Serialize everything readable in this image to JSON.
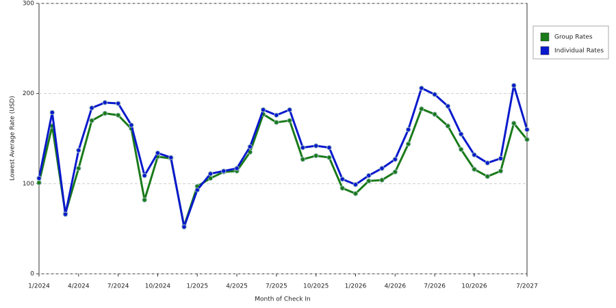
{
  "chart_data": {
    "type": "line",
    "x_label": "Month of Check In",
    "y_label": "Lowest Average Rate (USD)",
    "categories": [
      "1/2024",
      null,
      null,
      "4/2024",
      null,
      null,
      "7/2024",
      null,
      null,
      "10/2024",
      null,
      null,
      "1/2025",
      null,
      null,
      "4/2025",
      null,
      null,
      "7/2025",
      null,
      null,
      "10/2025",
      null,
      null,
      "1/2026",
      null,
      null,
      "4/2026",
      null,
      null,
      "7/2026",
      null,
      null,
      "10/2026",
      null,
      null,
      null,
      "7/2027"
    ],
    "series": [
      {
        "name": "Group Rates",
        "color": "#1a7a1a",
        "values": [
          101,
          164,
          67,
          117,
          170,
          178,
          176,
          161,
          82,
          130,
          128,
          53,
          97,
          106,
          113,
          114,
          135,
          177,
          168,
          170,
          127,
          131,
          129,
          95,
          89,
          103,
          104,
          113,
          144,
          183,
          177,
          164,
          138,
          116,
          108,
          114,
          167,
          149
        ]
      },
      {
        "name": "Individual Rates",
        "color": "#0a1acc",
        "values": [
          106,
          179,
          66,
          137,
          184,
          190,
          189,
          165,
          109,
          134,
          129,
          52,
          93,
          111,
          114,
          117,
          141,
          182,
          176,
          182,
          140,
          142,
          140,
          105,
          99,
          109,
          117,
          127,
          160,
          206,
          199,
          186,
          155,
          132,
          123,
          128,
          209,
          160
        ]
      }
    ],
    "ylim": [
      0,
      300
    ],
    "yticks": [
      0,
      100,
      200,
      300
    ],
    "grid": true,
    "legend": "right"
  }
}
